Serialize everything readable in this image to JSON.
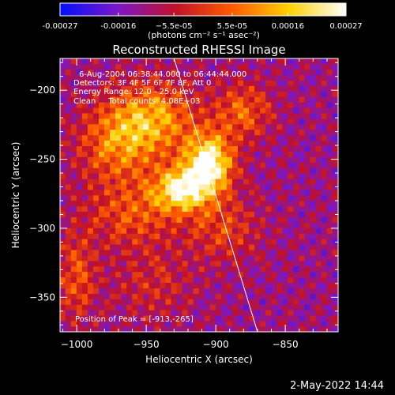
{
  "chart_data": {
    "type": "heatmap",
    "title": "Reconstructed RHESSI Image",
    "xlabel": "Heliocentric X (arcsec)",
    "ylabel": "Heliocentric Y (arcsec)",
    "xlim": [
      -1012,
      -812
    ],
    "ylim": [
      -375,
      -177
    ],
    "x_ticks": [
      -1000,
      -950,
      -900,
      -850
    ],
    "x_tick_labels": [
      "−1000",
      "−950",
      "−900",
      "−850"
    ],
    "y_ticks": [
      -200,
      -250,
      -300,
      -350
    ],
    "y_tick_labels": [
      "−200",
      "−250",
      "−300",
      "−350"
    ],
    "colorbar": {
      "ticks": [
        -0.00027,
        -0.00016,
        -5.5e-05,
        5.5e-05,
        0.00016,
        0.00027
      ],
      "tick_labels": [
        "-0.00027",
        "-0.00016",
        "−5.5e-05",
        "5.5e-05",
        "0.00016",
        "0.00027"
      ],
      "range": [
        -0.00027,
        0.00027
      ],
      "unit_label": "(photons cm⁻² s⁻¹ asec⁻²)",
      "colors": [
        "#0010ff",
        "#7a18c8",
        "#c0102a",
        "#ff5a00",
        "#ffd000",
        "#ffffff"
      ]
    },
    "annotations": {
      "time_range": "6-Aug-2004 06:38:44.000 to 06:44:44.000",
      "detectors": "Detectors: 3F 4F 5F 6F 7F 8F, Att 0",
      "energy_range": "Energy Range: 12.0 - 25.0 keV",
      "clean_counts": "Clean     Total counts: 4.08E+03",
      "peak_position": "Position of Peak = [-913,-265]"
    },
    "peak": {
      "x": -913,
      "y": -265
    },
    "limb_line": [
      [
        -930,
        -177
      ],
      [
        -870,
        -375
      ]
    ],
    "sources": [
      {
        "x": -905,
        "y": -253,
        "amp": 1.0,
        "sx": 12,
        "sy": 15
      },
      {
        "x": -925,
        "y": -272,
        "amp": 0.85,
        "sx": 14,
        "sy": 11
      },
      {
        "x": -945,
        "y": -220,
        "amp": 0.55,
        "sx": 22,
        "sy": 18
      },
      {
        "x": -970,
        "y": -240,
        "amp": 0.45,
        "sx": 20,
        "sy": 20
      },
      {
        "x": -880,
        "y": -215,
        "amp": 0.4,
        "sx": 14,
        "sy": 14
      },
      {
        "x": -960,
        "y": -290,
        "amp": 0.35,
        "sx": 22,
        "sy": 16
      },
      {
        "x": -895,
        "y": -300,
        "amp": 0.3,
        "sx": 18,
        "sy": 16
      },
      {
        "x": -1000,
        "y": -335,
        "amp": 0.35,
        "sx": 10,
        "sy": 22
      },
      {
        "x": -945,
        "y": -340,
        "amp": 0.2,
        "sx": 20,
        "sy": 18
      }
    ]
  },
  "footer": {
    "date": "2-May-2022 14:44"
  }
}
